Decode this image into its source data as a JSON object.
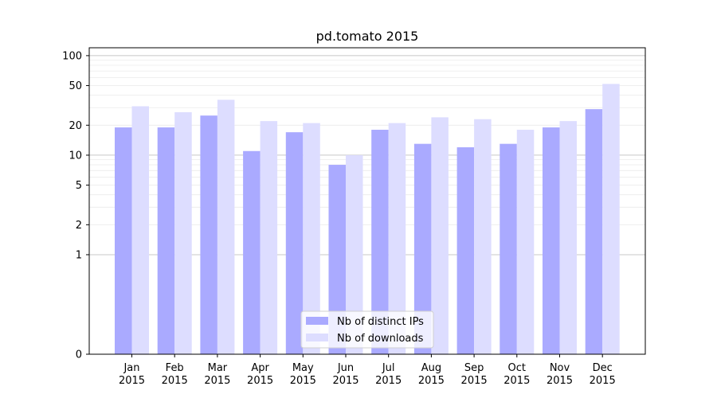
{
  "chart_data": {
    "type": "bar",
    "title": "pd.tomato 2015",
    "scale": "symlog",
    "categories": [
      [
        "Jan",
        "2015"
      ],
      [
        "Feb",
        "2015"
      ],
      [
        "Mar",
        "2015"
      ],
      [
        "Apr",
        "2015"
      ],
      [
        "May",
        "2015"
      ],
      [
        "Jun",
        "2015"
      ],
      [
        "Jul",
        "2015"
      ],
      [
        "Aug",
        "2015"
      ],
      [
        "Sep",
        "2015"
      ],
      [
        "Oct",
        "2015"
      ],
      [
        "Nov",
        "2015"
      ],
      [
        "Dec",
        "2015"
      ]
    ],
    "series": [
      {
        "name": "Nb of distinct IPs",
        "color": "#aaaaff",
        "values": [
          19,
          19,
          25,
          11,
          17,
          8,
          18,
          13,
          12,
          13,
          19,
          29
        ]
      },
      {
        "name": "Nb of downloads",
        "color": "#ddddff",
        "values": [
          31,
          27,
          36,
          22,
          21,
          10,
          21,
          24,
          23,
          18,
          22,
          52
        ]
      }
    ],
    "y_ticks": [
      0,
      1,
      2,
      5,
      10,
      20,
      50,
      100
    ],
    "ylim": [
      0,
      120
    ],
    "grid": true,
    "legend_position": "lower center"
  }
}
